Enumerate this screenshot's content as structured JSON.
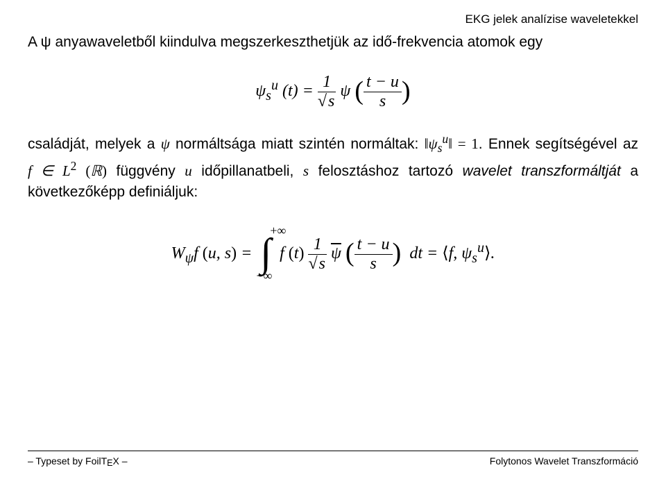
{
  "header": {
    "running_title": "EKG jelek analízise waveletekkel"
  },
  "body": {
    "para1": "A ψ anyawaveletből kiindulva megszerkeszthetjük az idő-frekvencia atomok egy",
    "formula1_html": "ψ<sub>s</sub><sup>u</sup> (t) = <span style='display:inline-block;vertical-align:middle;'><span style='display:block;text-align:center;border-bottom:1px solid #000;padding:0 4px;'>1</span><span style='display:block;text-align:center;'>√<span style='border-top:1px solid #000;padding:0 2px;'>s</span></span></span> ψ <span class='up' style='font-size:1.6em;position:relative;top:0.12em;'>(</span><span style='display:inline-block;vertical-align:middle;'><span style='display:block;text-align:center;border-bottom:1px solid #000;padding:0 4px;'>t − u</span><span style='display:block;text-align:center;'>s</span></span><span class='up' style='font-size:1.6em;position:relative;top:0.12em;'>)</span>",
    "para2_html": "családját, melyek a <span style='font-family:Georgia;font-style:italic;'>ψ</span> normáltsága miatt szintén normáltak: <span class='nowrap' style='font-family:Georgia;font-style:italic;'>‖ψ<sub>s</sub><sup>u</sup>‖ <span class='up'>= 1</span></span>. Ennek segítségével az <span class='nowrap' style='font-family:Georgia;font-style:italic;'>f ∈ L<sup><span class='up'>2</span></sup> <span class='up'>(</span>ℝ<span class='up'>)</span></span> függvény <span style='font-family:Georgia;font-style:italic;'>u</span> időpillanatbeli, <span style='font-family:Georgia;font-style:italic;'>s</span> felosztáshoz tartozó <span style='font-style:italic;'>wavelet transzformáltját</span> a következőképp definiáljuk:",
    "formula2_html": "<span style='font-style:italic;'>W</span><sub style='font-style:italic;'>ψ</sub><span style='font-style:italic;'>f</span> <span class='up'>(</span><span style='font-style:italic;'>u, s</span><span class='up'>)</span> = <span style='display:inline-block;vertical-align:middle;position:relative;margin:0 6px;'><span style='position:absolute;top:-20px;left:14px;font-size:0.75em;' class='up'>+∞</span><span style='font-size:2.4em;display:inline-block;line-height:0.8;'>∫</span><span style='position:absolute;bottom:-18px;left:-6px;font-size:0.75em;' class='up'>−∞</span></span> <span style='font-style:italic;'>f</span> <span class='up'>(</span><span style='font-style:italic;'>t</span><span class='up'>)</span> <span style='display:inline-block;vertical-align:middle;'><span style='display:block;text-align:center;border-bottom:1px solid #000;padding:0 4px;'>1</span><span style='display:block;text-align:center;'>√<span style='border-top:1px solid #000;padding:0 2px;font-style:italic;'>s</span></span></span> <span style='font-style:italic;position:relative;'><span style='text-decoration:overline;'>ψ</span></span> <span class='up' style='font-size:1.6em;position:relative;top:0.12em;'>(</span><span style='display:inline-block;vertical-align:middle;'><span style='display:block;text-align:center;border-bottom:1px solid #000;padding:0 4px;font-style:italic;'>t − u</span><span style='display:block;text-align:center;font-style:italic;'>s</span></span><span class='up' style='font-size:1.6em;position:relative;top:0.12em;'>)</span> &nbsp;<span style='font-style:italic;'>dt</span> = <span class='up'>⟨</span><span style='font-style:italic;'>f, ψ<sub>s</sub><sup>u</sup></span><span class='up'>⟩</span>."
  },
  "footer": {
    "left_html": "– Typeset by FoilT<span class='tex-e'>E</span>X –",
    "right": "Folytonos Wavelet Transzformáció"
  }
}
